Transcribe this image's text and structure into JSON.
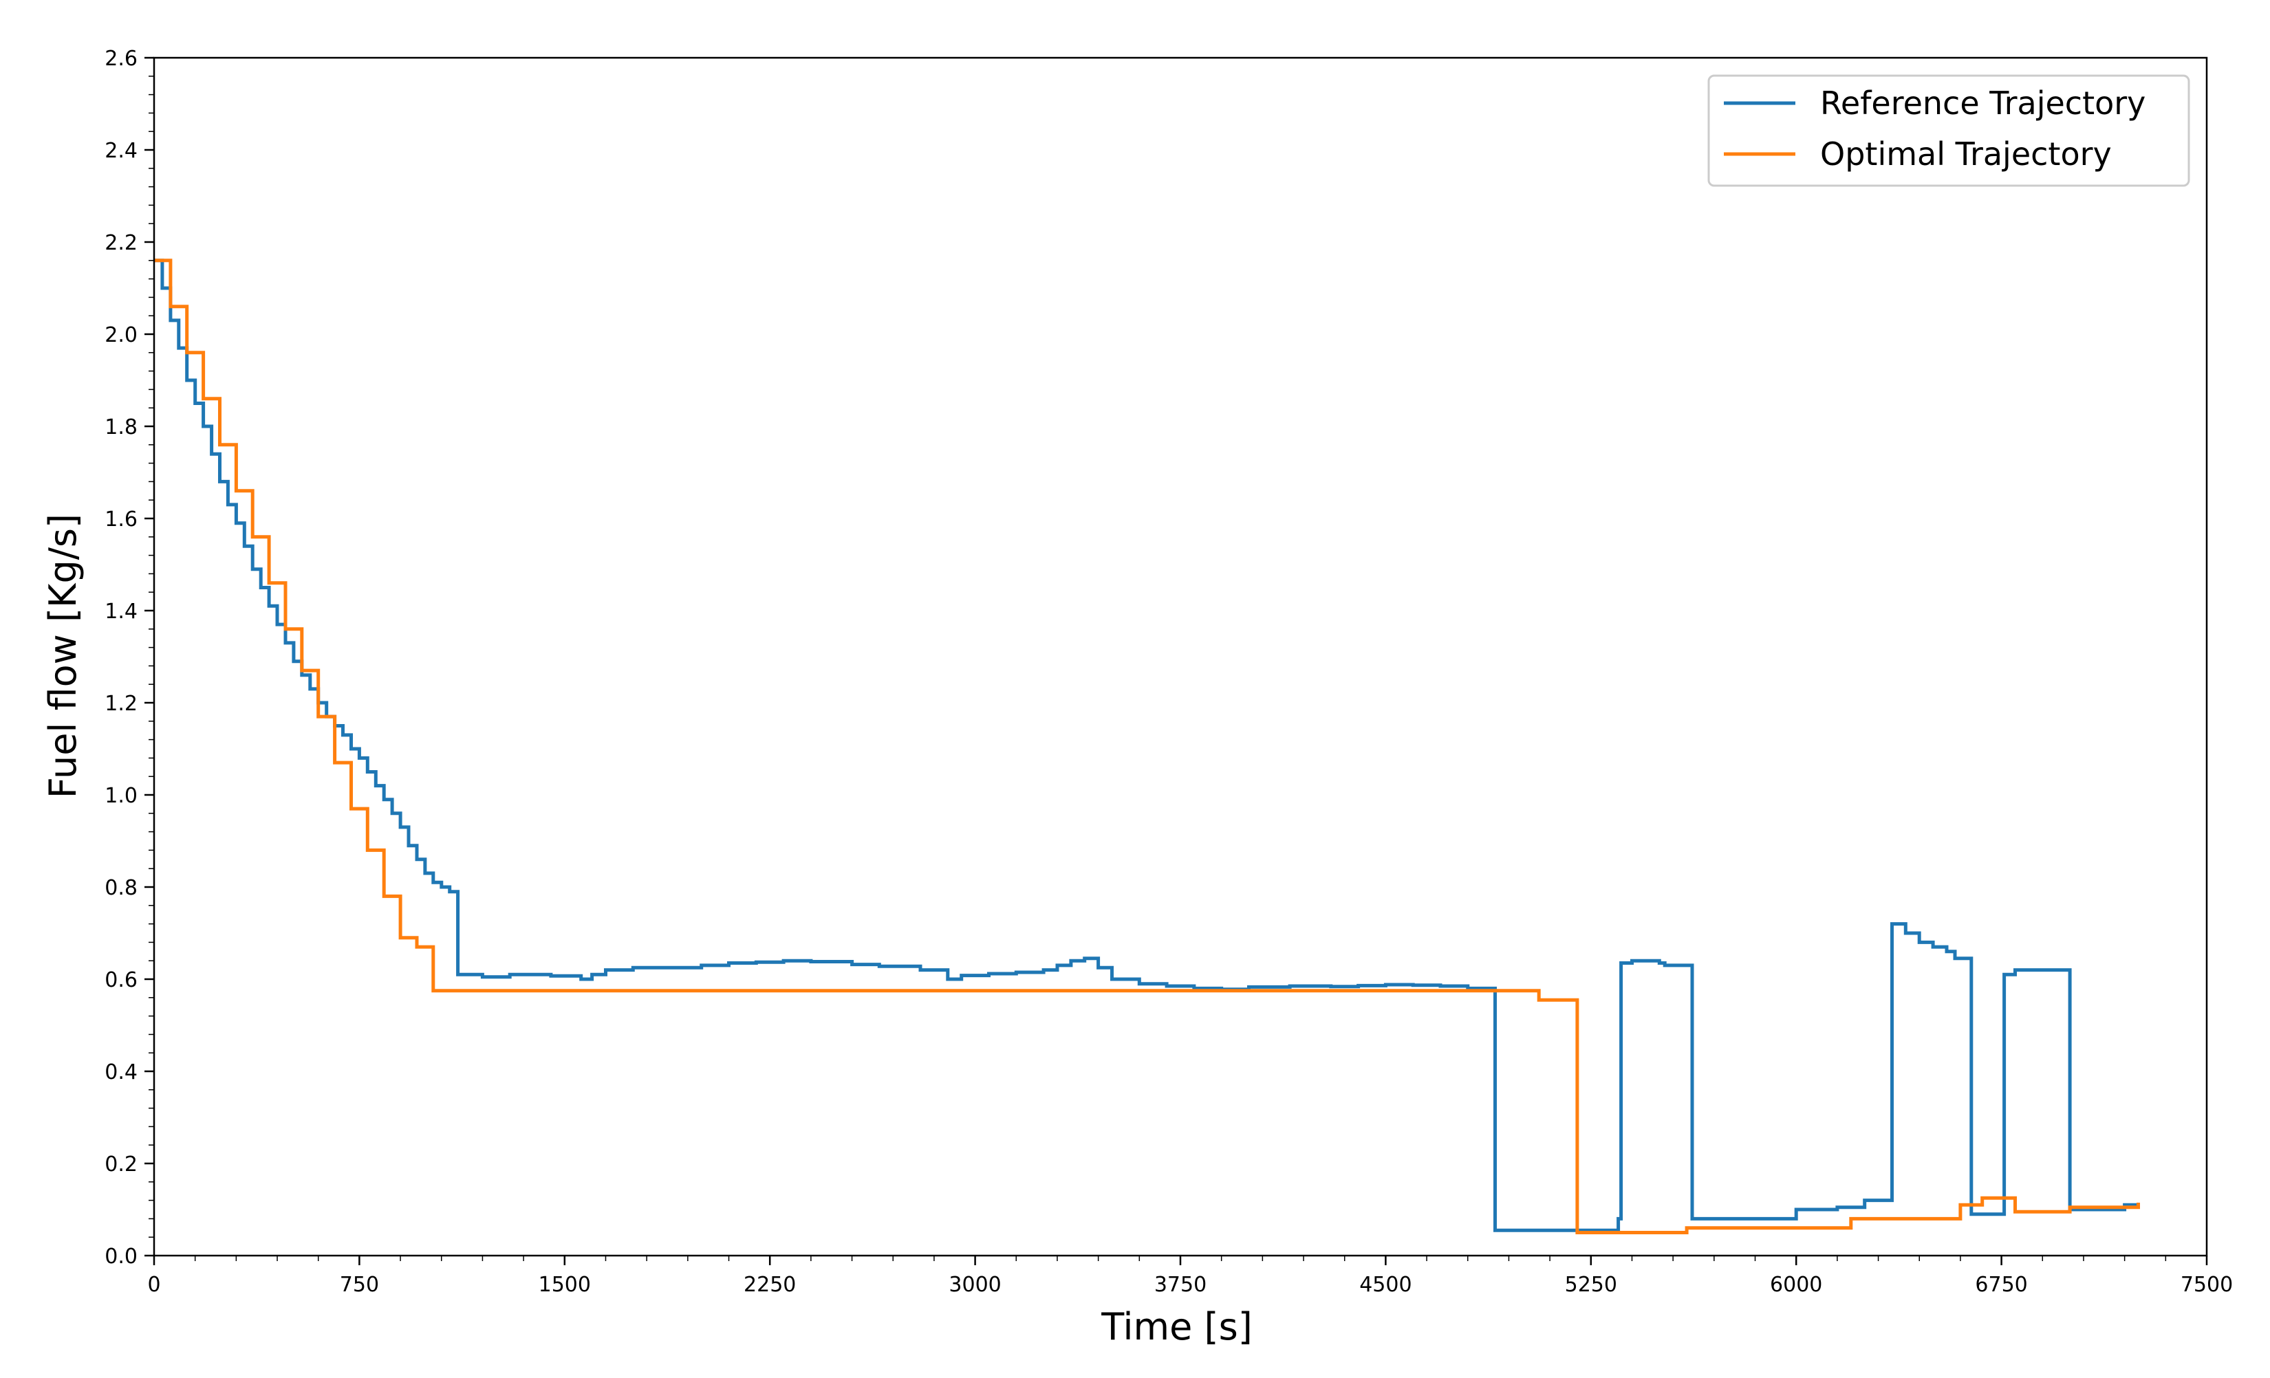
{
  "chart_data": {
    "type": "line",
    "title": "",
    "xlabel": "Time [s]",
    "ylabel": "Fuel flow [Kg/s]",
    "xlim": [
      0,
      7500
    ],
    "ylim": [
      0.0,
      2.6
    ],
    "x_ticks": [
      "0",
      "750",
      "1500",
      "2250",
      "3000",
      "3750",
      "4500",
      "5250",
      "6000",
      "6750",
      "7500"
    ],
    "y_ticks": [
      "0.0",
      "0.2",
      "0.4",
      "0.6",
      "0.8",
      "1.0",
      "1.2",
      "1.4",
      "1.6",
      "1.8",
      "2.0",
      "2.2",
      "2.4",
      "2.6"
    ],
    "grid": false,
    "legend_position": "top-right",
    "series": [
      {
        "name": "Reference Trajectory",
        "color": "#1f77b4",
        "step": true,
        "x": [
          0,
          30,
          60,
          90,
          120,
          150,
          180,
          210,
          240,
          270,
          300,
          330,
          360,
          390,
          420,
          450,
          480,
          510,
          540,
          570,
          600,
          630,
          660,
          690,
          720,
          750,
          780,
          810,
          840,
          870,
          900,
          930,
          960,
          990,
          1020,
          1050,
          1080,
          1110,
          1200,
          1300,
          1450,
          1560,
          1600,
          1650,
          1750,
          1900,
          2000,
          2100,
          2200,
          2300,
          2400,
          2550,
          2650,
          2800,
          2900,
          2950,
          3050,
          3150,
          3250,
          3300,
          3350,
          3400,
          3450,
          3500,
          3600,
          3700,
          3800,
          3900,
          4000,
          4150,
          4300,
          4400,
          4500,
          4600,
          4700,
          4800,
          4900,
          5350,
          5360,
          5400,
          5500,
          5520,
          5620,
          6000,
          6150,
          6250,
          6350,
          6400,
          6450,
          6500,
          6550,
          6580,
          6640,
          6700,
          6760,
          6800,
          7000,
          7200,
          7250
        ],
        "y": [
          2.16,
          2.1,
          2.03,
          1.97,
          1.9,
          1.85,
          1.8,
          1.74,
          1.68,
          1.63,
          1.59,
          1.54,
          1.49,
          1.45,
          1.41,
          1.37,
          1.33,
          1.29,
          1.26,
          1.23,
          1.2,
          1.17,
          1.15,
          1.13,
          1.1,
          1.08,
          1.05,
          1.02,
          0.99,
          0.96,
          0.93,
          0.89,
          0.86,
          0.83,
          0.81,
          0.8,
          0.79,
          0.61,
          0.605,
          0.61,
          0.607,
          0.6,
          0.61,
          0.62,
          0.625,
          0.625,
          0.63,
          0.635,
          0.637,
          0.64,
          0.638,
          0.632,
          0.628,
          0.62,
          0.6,
          0.608,
          0.612,
          0.615,
          0.62,
          0.63,
          0.64,
          0.645,
          0.625,
          0.6,
          0.59,
          0.585,
          0.58,
          0.578,
          0.583,
          0.585,
          0.584,
          0.586,
          0.588,
          0.587,
          0.585,
          0.58,
          0.055,
          0.08,
          0.635,
          0.64,
          0.635,
          0.63,
          0.08,
          0.1,
          0.105,
          0.12,
          0.72,
          0.7,
          0.68,
          0.67,
          0.66,
          0.645,
          0.09,
          0.09,
          0.61,
          0.62,
          0.1,
          0.11,
          0.115
        ]
      },
      {
        "name": "Optimal Trajectory",
        "color": "#ff7f0e",
        "step": true,
        "x": [
          0,
          60,
          120,
          180,
          240,
          300,
          360,
          420,
          480,
          540,
          600,
          660,
          720,
          780,
          840,
          900,
          960,
          1020,
          5060,
          5200,
          5600,
          6200,
          6600,
          6680,
          6800,
          7000,
          7250
        ],
        "y": [
          2.16,
          2.06,
          1.96,
          1.86,
          1.76,
          1.66,
          1.56,
          1.46,
          1.36,
          1.27,
          1.17,
          1.07,
          0.97,
          0.88,
          0.78,
          0.69,
          0.67,
          0.575,
          0.555,
          0.05,
          0.06,
          0.08,
          0.11,
          0.125,
          0.095,
          0.105,
          0.115
        ]
      }
    ]
  }
}
